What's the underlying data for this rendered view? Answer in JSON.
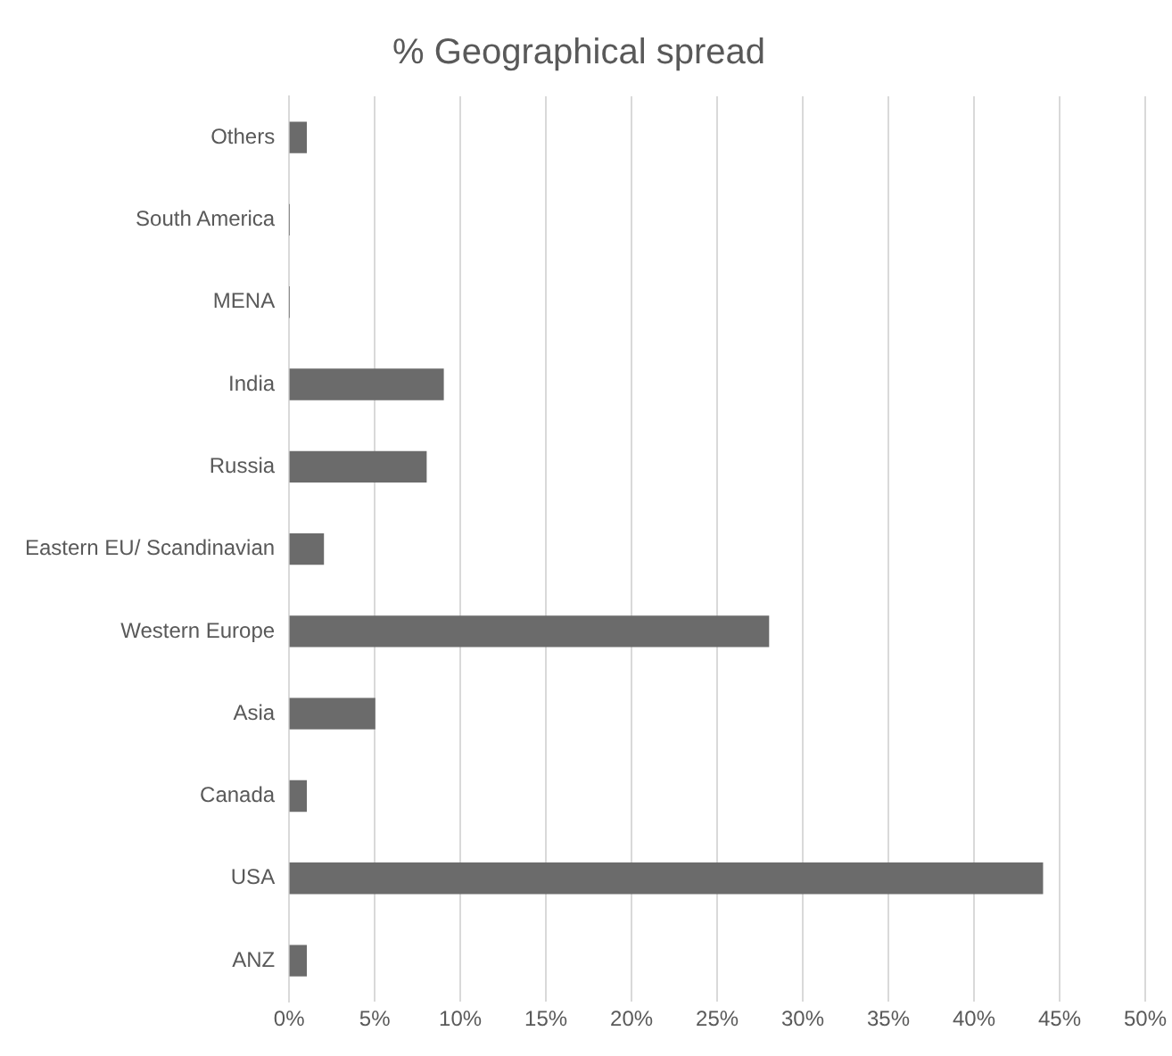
{
  "chart_data": {
    "type": "bar",
    "orientation": "horizontal",
    "title": "% Geographical spread",
    "categories": [
      "Others",
      "South America",
      "MENA",
      "India",
      "Russia",
      "Eastern EU/ Scandinavian",
      "Western Europe",
      "Asia",
      "Canada",
      "USA",
      "ANZ"
    ],
    "values": [
      1,
      0,
      0,
      9,
      8,
      2,
      28,
      5,
      1,
      44,
      1
    ],
    "color": "#6b6b6b",
    "xlim": [
      0,
      50
    ],
    "xticks": [
      {
        "value": 0,
        "label": "0%"
      },
      {
        "value": 5,
        "label": "5%"
      },
      {
        "value": 10,
        "label": "10%"
      },
      {
        "value": 15,
        "label": "15%"
      },
      {
        "value": 20,
        "label": "20%"
      },
      {
        "value": 25,
        "label": "25%"
      },
      {
        "value": 30,
        "label": "30%"
      },
      {
        "value": 35,
        "label": "35%"
      },
      {
        "value": 40,
        "label": "40%"
      },
      {
        "value": 45,
        "label": "45%"
      },
      {
        "value": 50,
        "label": "50%"
      }
    ],
    "grid": "x",
    "legend": false
  }
}
